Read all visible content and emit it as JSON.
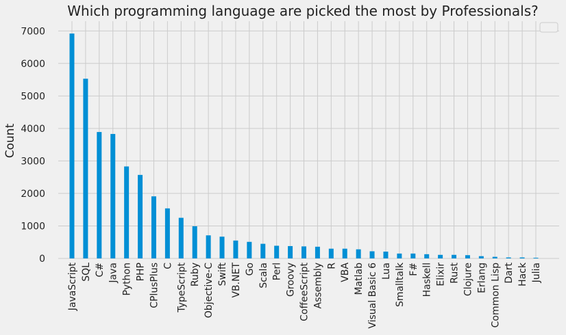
{
  "chart_data": {
    "type": "bar",
    "title": "Which programming language are picked the most by Professionals?",
    "xlabel": "",
    "ylabel": "Count",
    "ylim": [
      0,
      7300
    ],
    "yticks": [
      0,
      1000,
      2000,
      3000,
      4000,
      5000,
      6000,
      7000
    ],
    "grid": true,
    "legend": "top-right (empty)",
    "bar_color": "#008fd5",
    "background_color": "#f0f0f0",
    "grid_color": "#cbcbcb",
    "categories": [
      "JavaScript",
      "SQL",
      "C#",
      "Java",
      "Python",
      "PHP",
      "CPlusPlus",
      "C",
      "TypeScript",
      "Ruby",
      "Objective-C",
      "Swift",
      "VB.NET",
      "Go",
      "Scala",
      "Perl",
      "Groovy",
      "CoffeeScript",
      "Assembly",
      "R",
      "VBA",
      "Matlab",
      "Visual Basic 6",
      "Lua",
      "Smalltalk",
      "F#",
      "Haskell",
      "Elixir",
      "Rust",
      "Clojure",
      "Erlang",
      "Common Lisp",
      "Dart",
      "Hack",
      "Julia"
    ],
    "values": [
      6920,
      5530,
      3890,
      3830,
      2830,
      2570,
      1910,
      1540,
      1250,
      990,
      710,
      670,
      550,
      510,
      450,
      390,
      380,
      370,
      360,
      300,
      300,
      280,
      220,
      210,
      150,
      150,
      130,
      110,
      110,
      100,
      70,
      50,
      30,
      30,
      20
    ]
  }
}
